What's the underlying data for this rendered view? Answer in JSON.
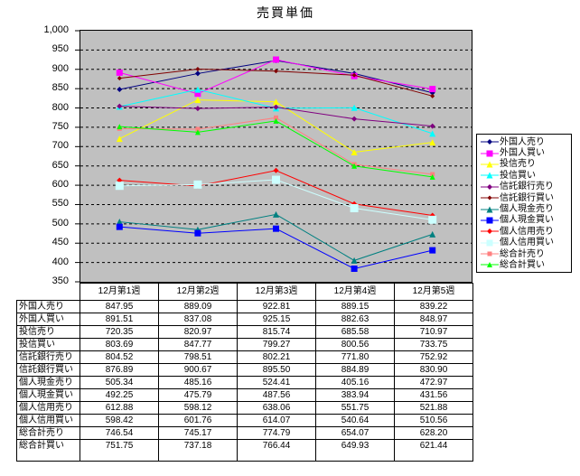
{
  "title": "売買単価",
  "chart_data": {
    "type": "line",
    "title": "売買単価",
    "categories": [
      "12月第1週",
      "12月第2週",
      "12月第3週",
      "12月第4週",
      "12月第5週"
    ],
    "series": [
      {
        "name": "外国人売り",
        "color": "#000080",
        "marker": "diamond",
        "marker_size": 3,
        "values": [
          847.95,
          889.09,
          922.81,
          889.15,
          839.22
        ]
      },
      {
        "name": "外国人買い",
        "color": "#FF00FF",
        "marker": "square",
        "marker_size": 3.5,
        "values": [
          891.51,
          837.08,
          925.15,
          882.63,
          848.97
        ]
      },
      {
        "name": "投信売り",
        "color": "#FFFF00",
        "marker": "triangle",
        "marker_size": 3.5,
        "values": [
          720.35,
          820.97,
          815.74,
          685.58,
          710.97
        ]
      },
      {
        "name": "投信買い",
        "color": "#00FFFF",
        "marker": "triangle",
        "marker_size": 3.5,
        "values": [
          803.69,
          847.77,
          799.27,
          800.56,
          733.75
        ]
      },
      {
        "name": "信託銀行売り",
        "color": "#800080",
        "marker": "diamond",
        "marker_size": 3,
        "values": [
          804.52,
          798.51,
          802.21,
          771.8,
          752.92
        ]
      },
      {
        "name": "信託銀行買い",
        "color": "#800000",
        "marker": "diamond",
        "marker_size": 2.5,
        "values": [
          876.89,
          900.67,
          895.5,
          884.89,
          830.9
        ]
      },
      {
        "name": "個人現金売り",
        "color": "#008080",
        "marker": "triangle",
        "marker_size": 3.5,
        "values": [
          505.34,
          485.16,
          524.41,
          405.16,
          472.97
        ]
      },
      {
        "name": "個人現金買い",
        "color": "#0000FF",
        "marker": "square",
        "marker_size": 3.5,
        "values": [
          492.25,
          475.79,
          487.56,
          383.94,
          431.56
        ]
      },
      {
        "name": "個人信用売り",
        "color": "#FF0000",
        "marker": "diamond",
        "marker_size": 3,
        "values": [
          612.88,
          598.12,
          638.06,
          551.75,
          521.88
        ]
      },
      {
        "name": "個人信用買い",
        "color": "#CCFFFF",
        "marker": "square",
        "marker_size": 4.5,
        "values": [
          598.42,
          601.76,
          614.07,
          540.64,
          510.56
        ]
      },
      {
        "name": "総合計売り",
        "color": "#FF8080",
        "marker": "square",
        "marker_size": 2.5,
        "values": [
          746.54,
          745.17,
          774.79,
          654.07,
          628.2
        ]
      },
      {
        "name": "総合計買い",
        "color": "#00FF00",
        "marker": "triangle",
        "marker_size": 3,
        "values": [
          751.75,
          737.18,
          766.44,
          649.93,
          621.44
        ]
      }
    ],
    "ylim": [
      350,
      1000
    ],
    "ytick_step": 50,
    "ytick_labels": [
      "1,000",
      "950",
      "900",
      "850",
      "800",
      "750",
      "700",
      "650",
      "600",
      "550",
      "500",
      "450",
      "400",
      "350"
    ],
    "grid": "horizontal-dashed",
    "plot_background": "#C0C0C0",
    "legend_position": "right",
    "value_decimals": 2,
    "data_table_attached": true
  }
}
